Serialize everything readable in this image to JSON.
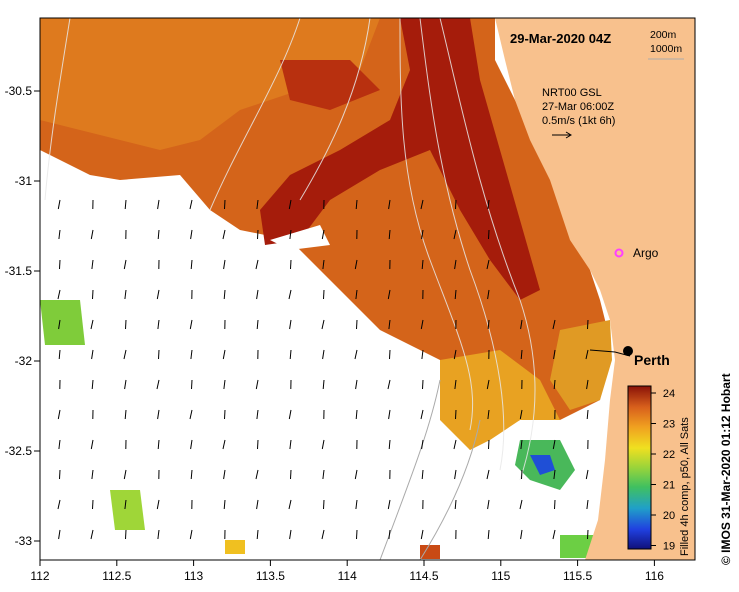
{
  "title_date": "29-Mar-2020 04Z",
  "contour_legend": {
    "line1": "200m",
    "line2": "1000m"
  },
  "current_info": {
    "line1": "NRT00 GSL",
    "line2": "27-Mar 06:00Z",
    "line3": "0.5m/s (1kt 6h)"
  },
  "places": {
    "argo": "Argo",
    "perth": "Perth"
  },
  "axes": {
    "x_ticks": [
      "112",
      "112.5",
      "113",
      "113.5",
      "114",
      "114.5",
      "115",
      "115.5",
      "116"
    ],
    "y_ticks": [
      "-30.5",
      "-31",
      "-31.5",
      "-32",
      "-32.5",
      "-33"
    ]
  },
  "colorbar": {
    "ticks": [
      "24",
      "23",
      "22",
      "21",
      "20",
      "19"
    ],
    "label": "Filled 4h comp, p50, All Sats"
  },
  "credit": "© IMOS 31-Mar-2020 01:12 Hobart",
  "colors": {
    "land": "#f8c18d",
    "ocean_blank": "#ffffff",
    "sst_warm": "#d4641a",
    "sst_hot": "#a51c0b",
    "sst_mid": "#e8a222",
    "sst_cool": "#8fd132",
    "argo_marker": "#ff40ff"
  }
}
